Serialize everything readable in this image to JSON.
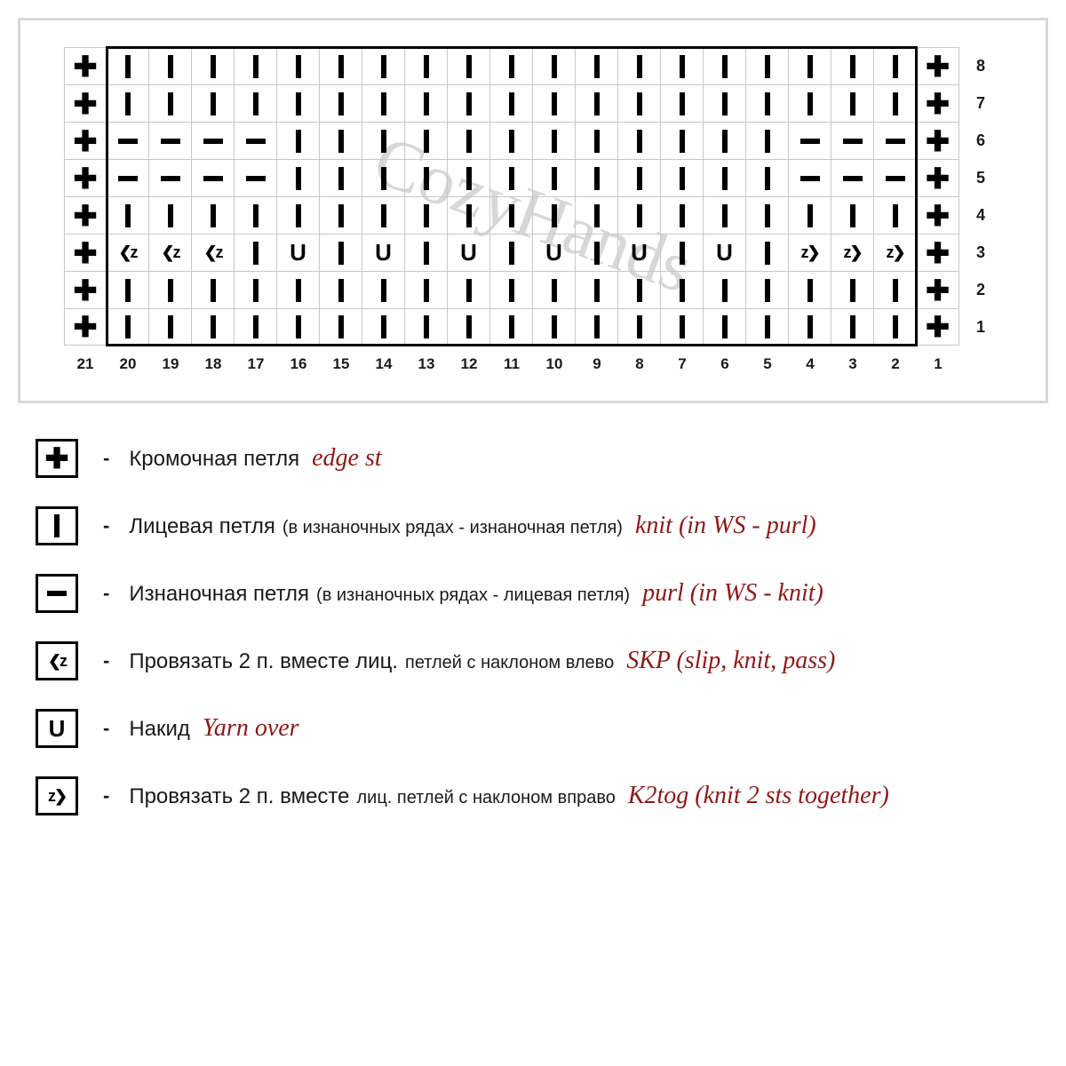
{
  "watermark": "CozyHands",
  "chart": {
    "cols": 21,
    "rows": 8,
    "col_labels": [
      "21",
      "20",
      "19",
      "18",
      "17",
      "16",
      "15",
      "14",
      "13",
      "12",
      "11",
      "10",
      "9",
      "8",
      "7",
      "6",
      "5",
      "4",
      "3",
      "2",
      "1"
    ],
    "row_labels": [
      "8",
      "7",
      "6",
      "5",
      "4",
      "3",
      "2",
      "1"
    ],
    "main_box": {
      "left_col": 2,
      "right_col": 20,
      "top_row": 1,
      "bottom_row": 8
    },
    "grid": [
      [
        "+",
        "I",
        "I",
        "I",
        "I",
        "I",
        "I",
        "I",
        "I",
        "I",
        "I",
        "I",
        "I",
        "I",
        "I",
        "I",
        "I",
        "I",
        "I",
        "I",
        "+"
      ],
      [
        "+",
        "I",
        "I",
        "I",
        "I",
        "I",
        "I",
        "I",
        "I",
        "I",
        "I",
        "I",
        "I",
        "I",
        "I",
        "I",
        "I",
        "I",
        "I",
        "I",
        "+"
      ],
      [
        "+",
        "-",
        "-",
        "-",
        "-",
        "I",
        "I",
        "I",
        "I",
        "I",
        "I",
        "I",
        "I",
        "I",
        "I",
        "I",
        "I",
        "-",
        "-",
        "-",
        "+"
      ],
      [
        "+",
        "-",
        "-",
        "-",
        "-",
        "I",
        "I",
        "I",
        "I",
        "I",
        "I",
        "I",
        "I",
        "I",
        "I",
        "I",
        "I",
        "-",
        "-",
        "-",
        "+"
      ],
      [
        "+",
        "I",
        "I",
        "I",
        "I",
        "I",
        "I",
        "I",
        "I",
        "I",
        "I",
        "I",
        "I",
        "I",
        "I",
        "I",
        "I",
        "I",
        "I",
        "I",
        "+"
      ],
      [
        "+",
        "<",
        "<",
        "<",
        "I",
        "U",
        "I",
        "U",
        "I",
        "U",
        "I",
        "U",
        "I",
        "U",
        "I",
        "U",
        "I",
        ">",
        ">",
        ">",
        "+"
      ],
      [
        "+",
        "I",
        "I",
        "I",
        "I",
        "I",
        "I",
        "I",
        "I",
        "I",
        "I",
        "I",
        "I",
        "I",
        "I",
        "I",
        "I",
        "I",
        "I",
        "I",
        "+"
      ],
      [
        "+",
        "I",
        "I",
        "I",
        "I",
        "I",
        "I",
        "I",
        "I",
        "I",
        "I",
        "I",
        "I",
        "I",
        "I",
        "I",
        "I",
        "I",
        "I",
        "I",
        "+"
      ]
    ],
    "cell_border_color": "#c8c8c8",
    "box_color": "#000000"
  },
  "symbols": {
    "+": {
      "glyph": "✚",
      "class": "sym-plus"
    },
    "I": {
      "glyph": "",
      "class": "sym-knit"
    },
    "-": {
      "glyph": "",
      "class": "sym-purl"
    },
    "U": {
      "glyph": "U",
      "class": "sym-yo"
    },
    "<": {
      "glyph": "❮ᴢ",
      "class": "sym-skp"
    },
    ">": {
      "glyph": "ᴢ❯",
      "class": "sym-k2tog"
    }
  },
  "legend": [
    {
      "sym": "+",
      "ru_main": "Кромочная петля",
      "ru_sub": "",
      "en": "edge st"
    },
    {
      "sym": "I",
      "ru_main": "Лицевая петля",
      "ru_sub": "(в изнаночных рядах - изнаночная петля)",
      "en": "knit (in WS - purl)"
    },
    {
      "sym": "-",
      "ru_main": "Изнаночная петля",
      "ru_sub": "(в изнаночных рядах - лицевая петля)",
      "en": "purl  (in WS - knit)"
    },
    {
      "sym": "<",
      "ru_main": "Провязать 2 п. вместе лиц.",
      "ru_sub": "петлей с наклоном влево",
      "en": "SKP (slip, knit, pass)"
    },
    {
      "sym": "U",
      "ru_main": "Накид",
      "ru_sub": "",
      "en": "Yarn over"
    },
    {
      "sym": ">",
      "ru_main": "Провязать 2 п. вместе",
      "ru_sub": "лиц. петлей с наклоном вправо",
      "en": "K2tog (knit 2 sts together)"
    }
  ],
  "colors": {
    "background": "#ffffff",
    "outer_border": "#d8d8d8",
    "text": "#1a1a1a",
    "en_text": "#8b1a1a",
    "watermark": "#b8b8b8"
  }
}
